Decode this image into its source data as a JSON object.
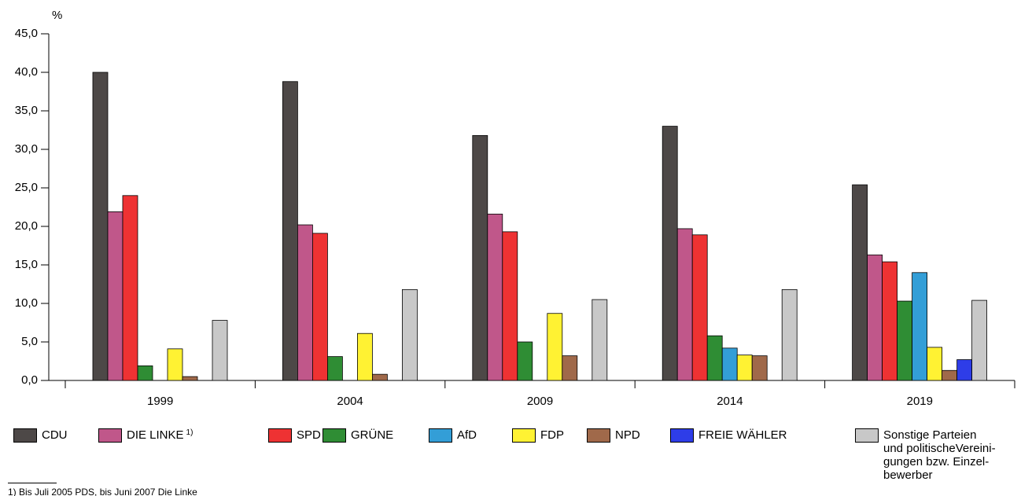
{
  "chart_data": {
    "type": "bar",
    "y_unit": "%",
    "categories": [
      "1999",
      "2004",
      "2009",
      "2014",
      "2019"
    ],
    "ylim": [
      0,
      45
    ],
    "yticks": [
      {
        "value": 0,
        "label": "0,0"
      },
      {
        "value": 5,
        "label": "5,0"
      },
      {
        "value": 10,
        "label": "10,0"
      },
      {
        "value": 15,
        "label": "15,0"
      },
      {
        "value": 20,
        "label": "20,0"
      },
      {
        "value": 25,
        "label": "25,0"
      },
      {
        "value": 30,
        "label": "30,0"
      },
      {
        "value": 35,
        "label": "35,0"
      },
      {
        "value": 40,
        "label": "40,0"
      },
      {
        "value": 45,
        "label": "45,0"
      }
    ],
    "series": [
      {
        "name": "CDU",
        "color": "#4d4847",
        "values": [
          40.0,
          38.8,
          31.8,
          33.0,
          25.4
        ]
      },
      {
        "name": "DIE LINKE",
        "note": "1)",
        "color": "#c0578a",
        "values": [
          21.9,
          20.2,
          21.6,
          19.7,
          16.3
        ]
      },
      {
        "name": "SPD",
        "color": "#ee3233",
        "values": [
          24.0,
          19.1,
          19.3,
          18.9,
          15.4
        ]
      },
      {
        "name": "GRÜNE",
        "color": "#2f8d34",
        "values": [
          1.9,
          3.1,
          5.0,
          5.8,
          10.3
        ]
      },
      {
        "name": "AfD",
        "color": "#339ed7",
        "values": [
          null,
          null,
          null,
          4.2,
          14.0
        ]
      },
      {
        "name": "FDP",
        "color": "#fff233",
        "values": [
          4.1,
          6.1,
          8.7,
          3.3,
          4.3
        ]
      },
      {
        "name": "NPD",
        "color": "#a0694a",
        "values": [
          0.5,
          0.8,
          3.2,
          3.2,
          1.3
        ]
      },
      {
        "name": "FREIE WÄHLER",
        "color": "#2e3de8",
        "values": [
          null,
          null,
          null,
          null,
          2.7
        ]
      },
      {
        "name": "Sonstige Parteien\nund politischeVereini-\ngungen bzw. Einzel-\nbewerber",
        "color": "#c8c8c8",
        "values": [
          7.8,
          11.8,
          10.5,
          11.8,
          10.4
        ]
      }
    ],
    "footnote": "1) Bis Juli 2005 PDS, bis Juni 2007 Die Linke"
  }
}
